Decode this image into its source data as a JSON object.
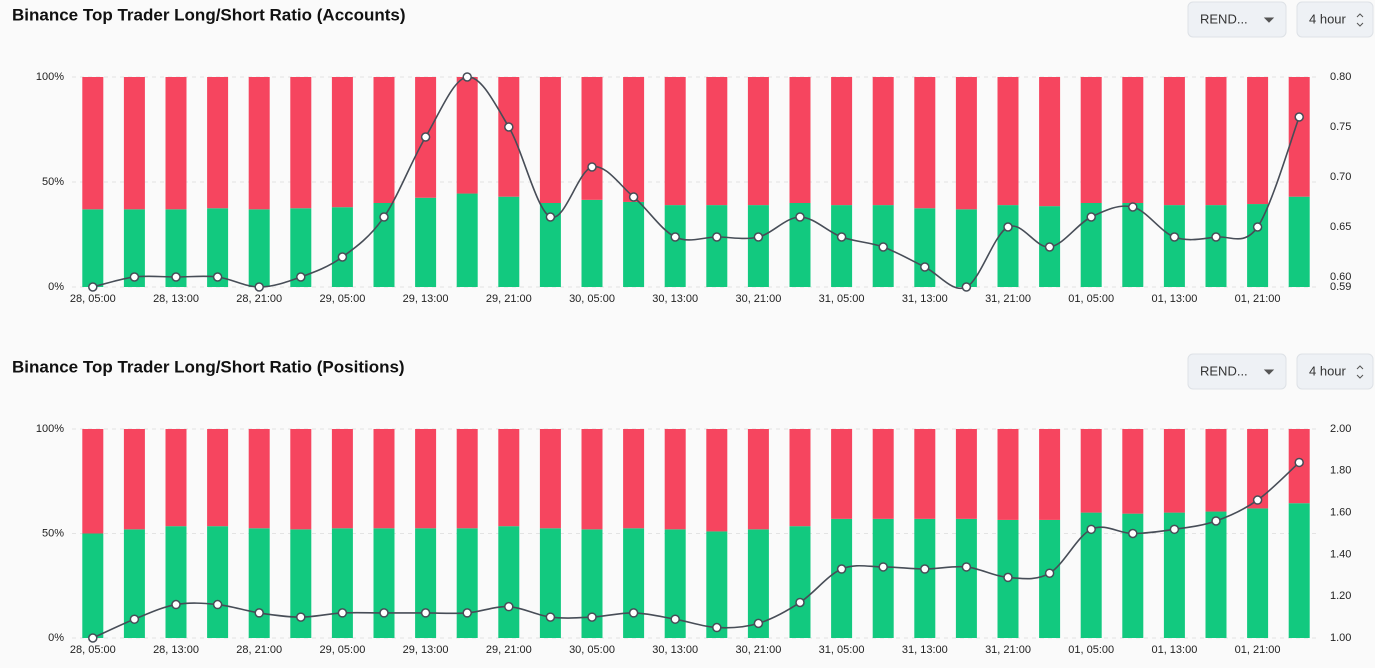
{
  "chart_data": [
    {
      "type": "stacked-bar-line",
      "title": "Binance Top Trader Long/Short Ratio (Accounts)",
      "controls": [
        "REND...",
        "4 hour"
      ],
      "categories": [
        "28, 05:00",
        null,
        "28, 13:00",
        null,
        "28, 21:00",
        null,
        "29, 05:00",
        null,
        "29, 13:00",
        null,
        "29, 21:00",
        null,
        "30, 05:00",
        null,
        "30, 13:00",
        null,
        "30, 21:00",
        null,
        "31, 05:00",
        null,
        "31, 13:00",
        null,
        "31, 21:00",
        null,
        "01, 05:00",
        null,
        "01, 13:00",
        null,
        "01, 21:00",
        null
      ],
      "series": [
        {
          "color": "#12c97f",
          "values": [
            37,
            37,
            37,
            37.5,
            37,
            37.5,
            38,
            40,
            42.5,
            44.5,
            43,
            40,
            41.5,
            40.5,
            39,
            39,
            39,
            40,
            39,
            39,
            37.5,
            37,
            39,
            38.5,
            40,
            40,
            39,
            39,
            39.5,
            43
          ]
        },
        {
          "color": "#f6455f",
          "values": [
            63,
            63,
            63,
            62.5,
            63,
            62.5,
            62,
            60,
            57.5,
            55.5,
            57,
            60,
            58.5,
            59.5,
            61,
            61,
            61,
            60,
            61,
            61,
            62.5,
            63,
            61,
            61.5,
            60,
            60,
            61,
            61,
            60.5,
            57
          ]
        },
        {
          "color": "#474d57",
          "axis": "y2",
          "values": [
            0.59,
            0.6,
            0.6,
            0.6,
            0.59,
            0.6,
            0.62,
            0.66,
            0.74,
            0.8,
            0.75,
            0.66,
            0.71,
            0.68,
            0.64,
            0.64,
            0.64,
            0.66,
            0.64,
            0.63,
            0.61,
            0.59,
            0.65,
            0.63,
            0.66,
            0.67,
            0.64,
            0.64,
            0.65,
            0.76
          ]
        }
      ],
      "ylim": [
        0,
        100
      ],
      "yticks": [
        {
          "value": 0,
          "label": "0%"
        },
        {
          "value": 50,
          "label": "50%"
        },
        {
          "value": 100,
          "label": "100%"
        }
      ],
      "y2lim": [
        0.59,
        0.8
      ],
      "y2ticks": [
        {
          "value": 0.59,
          "label": "0.59"
        },
        {
          "value": 0.6,
          "label": "0.60"
        },
        {
          "value": 0.65,
          "label": "0.65"
        },
        {
          "value": 0.7,
          "label": "0.70"
        },
        {
          "value": 0.75,
          "label": "0.75"
        },
        {
          "value": 0.8,
          "label": "0.80"
        }
      ],
      "grid": true
    },
    {
      "type": "stacked-bar-line",
      "title": "Binance Top Trader Long/Short Ratio (Positions)",
      "controls": [
        "REND...",
        "4 hour"
      ],
      "categories": [
        "28, 05:00",
        null,
        "28, 13:00",
        null,
        "28, 21:00",
        null,
        "29, 05:00",
        null,
        "29, 13:00",
        null,
        "29, 21:00",
        null,
        "30, 05:00",
        null,
        "30, 13:00",
        null,
        "30, 21:00",
        null,
        "31, 05:00",
        null,
        "31, 13:00",
        null,
        "31, 21:00",
        null,
        "01, 05:00",
        null,
        "01, 13:00",
        null,
        "01, 21:00",
        null
      ],
      "series": [
        {
          "color": "#12c97f",
          "values": [
            50,
            52,
            53.5,
            53.5,
            52.5,
            52,
            52.5,
            52.5,
            52.5,
            52.5,
            53.5,
            52.5,
            52,
            52.5,
            52,
            51,
            52,
            53.5,
            57,
            57,
            57,
            57,
            56.5,
            56.5,
            60,
            59.5,
            60,
            60.5,
            62,
            64.5
          ]
        },
        {
          "color": "#f6455f",
          "values": [
            50,
            48,
            46.5,
            46.5,
            47.5,
            48,
            47.5,
            47.5,
            47.5,
            47.5,
            46.5,
            47.5,
            48,
            47.5,
            48,
            49,
            48,
            46.5,
            43,
            43,
            43,
            43,
            43.5,
            43.5,
            40,
            40.5,
            40,
            39.5,
            38,
            35.5
          ]
        },
        {
          "color": "#474d57",
          "axis": "y2",
          "values": [
            1.0,
            1.09,
            1.16,
            1.16,
            1.12,
            1.1,
            1.12,
            1.12,
            1.12,
            1.12,
            1.15,
            1.1,
            1.1,
            1.12,
            1.09,
            1.05,
            1.07,
            1.17,
            1.33,
            1.34,
            1.33,
            1.34,
            1.29,
            1.31,
            1.52,
            1.5,
            1.52,
            1.56,
            1.66,
            1.84
          ]
        }
      ],
      "ylim": [
        0,
        100
      ],
      "yticks": [
        {
          "value": 0,
          "label": "0%"
        },
        {
          "value": 50,
          "label": "50%"
        },
        {
          "value": 100,
          "label": "100%"
        }
      ],
      "y2lim": [
        1,
        2
      ],
      "y2ticks": [
        {
          "value": 1,
          "label": "1.00"
        },
        {
          "value": 1.2,
          "label": "1.20"
        },
        {
          "value": 1.4,
          "label": "1.40"
        },
        {
          "value": 1.6,
          "label": "1.60"
        },
        {
          "value": 1.8,
          "label": "1.80"
        },
        {
          "value": 2,
          "label": "2.00"
        }
      ],
      "grid": true
    }
  ]
}
